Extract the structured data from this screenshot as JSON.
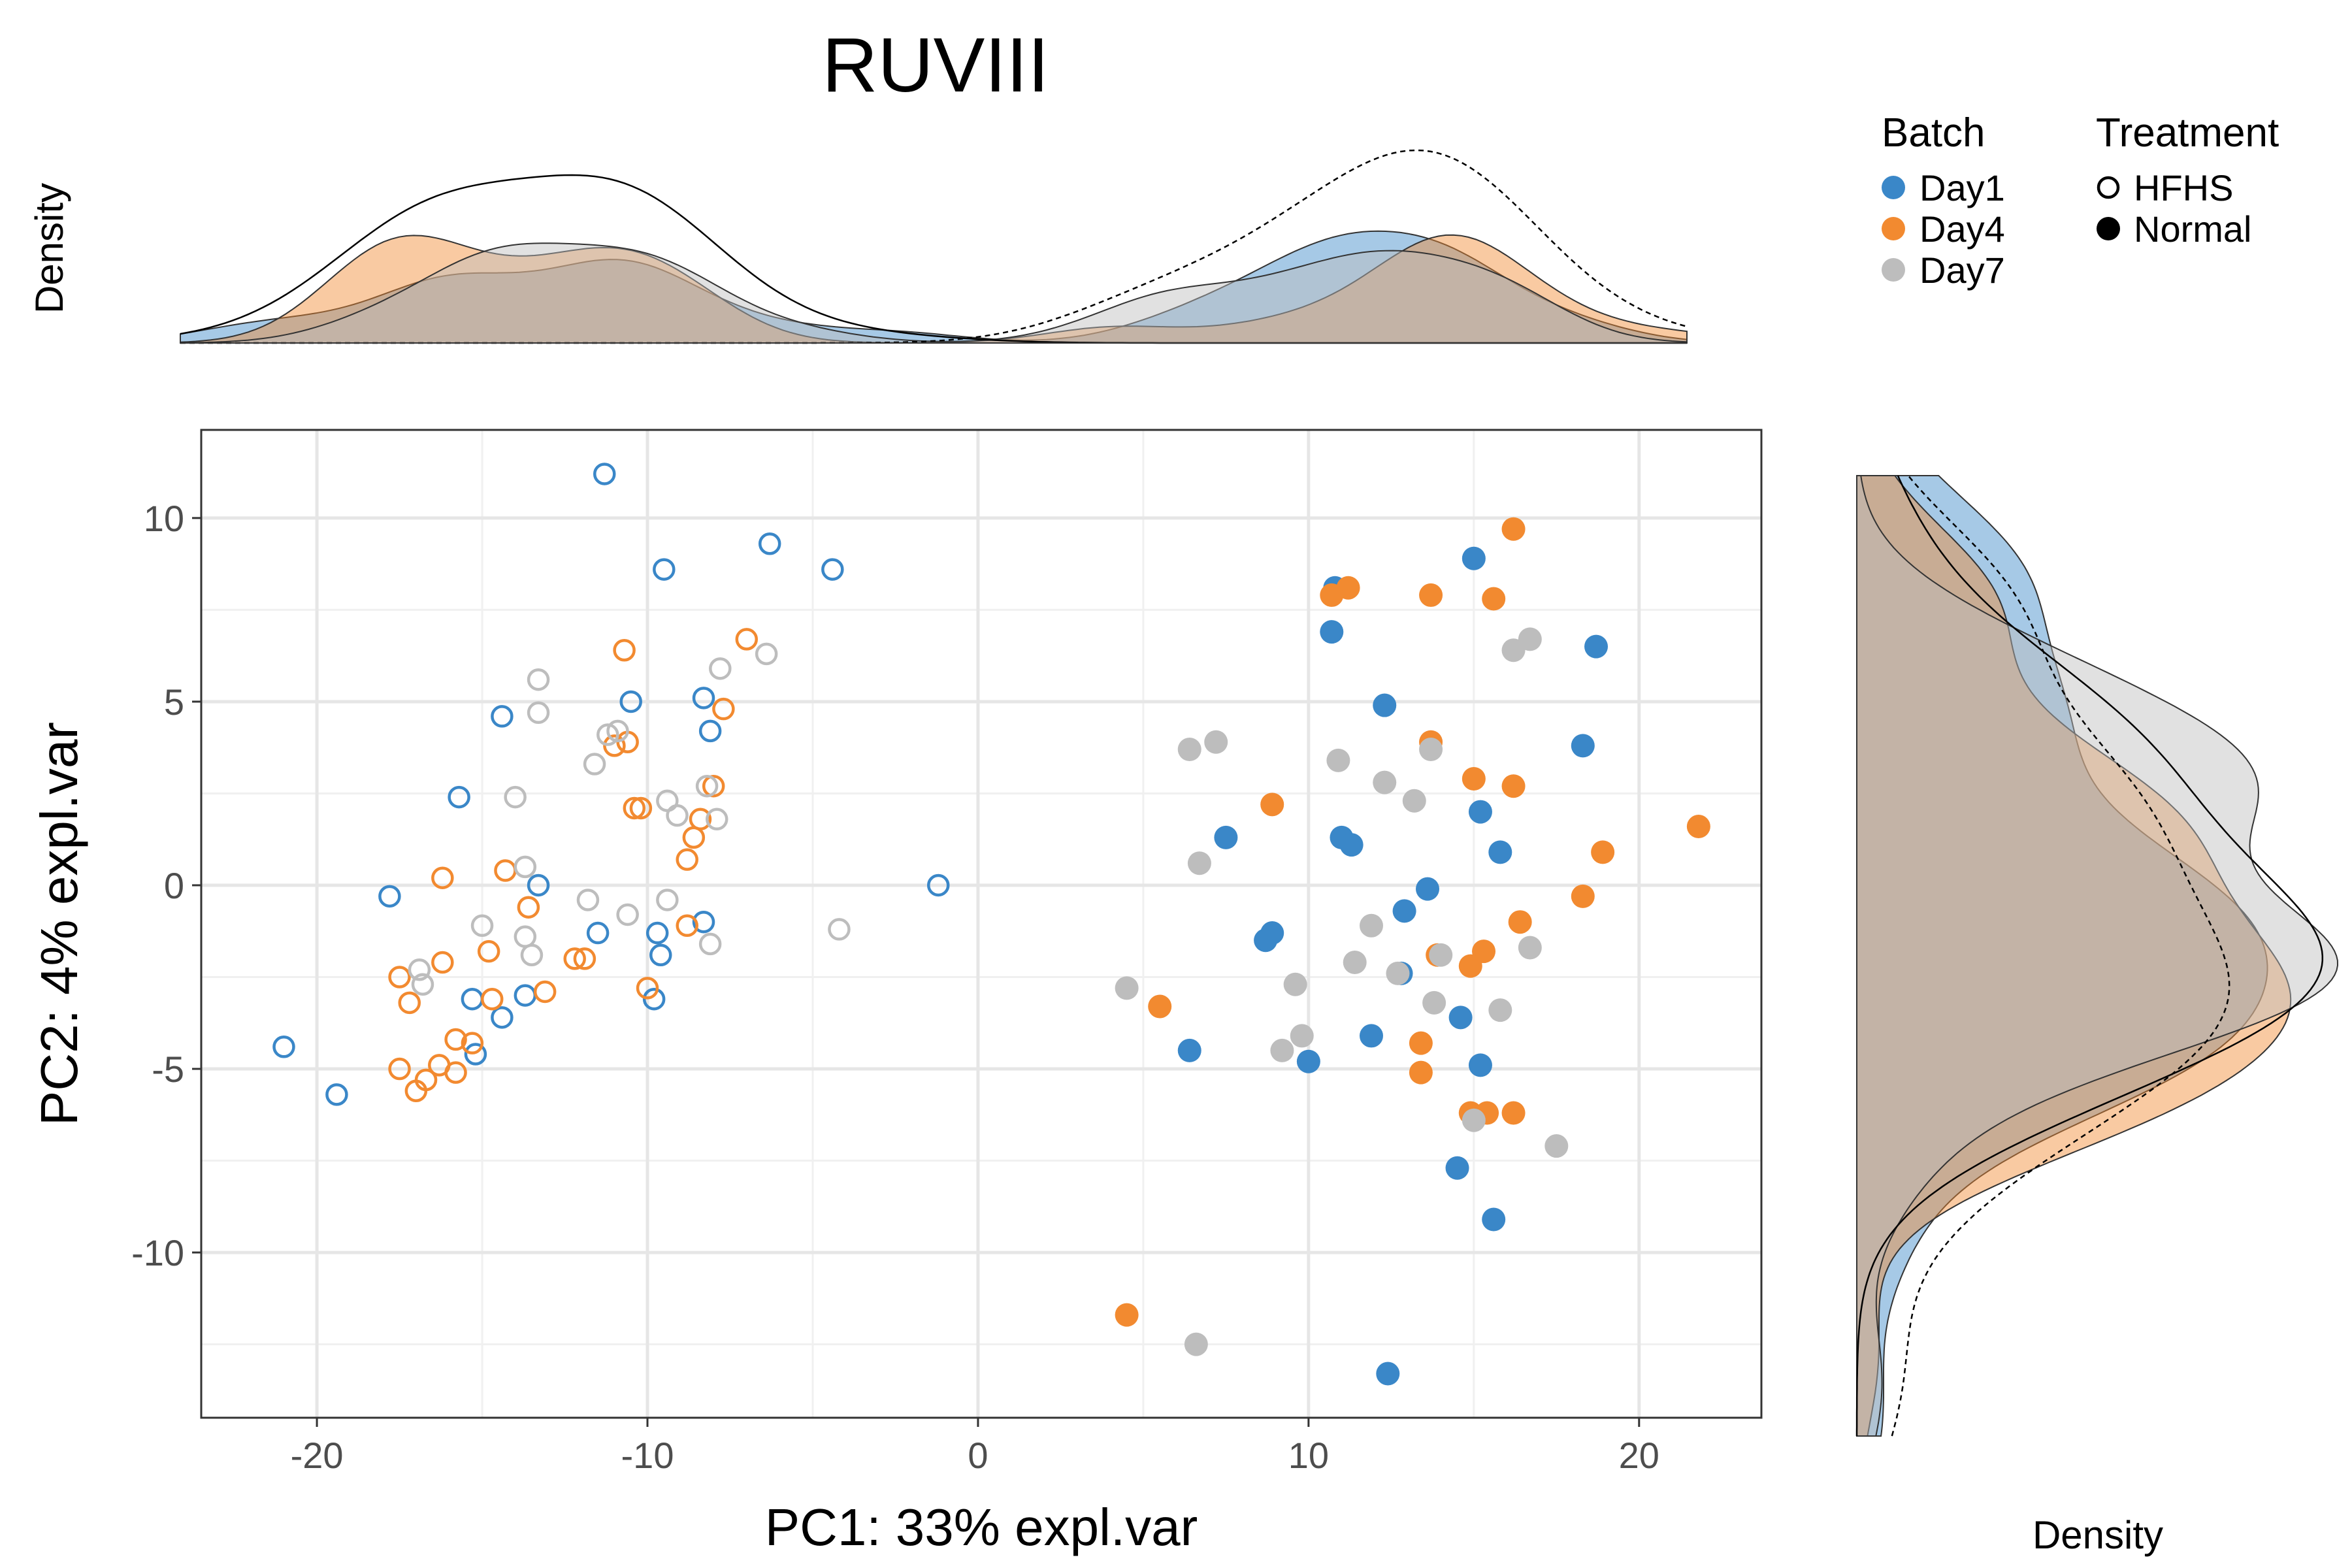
{
  "chart_data": {
    "type": "scatter",
    "title": "RUVIII",
    "xlabel": "PC1: 33% expl.var",
    "ylabel": "PC2: 4% expl.var",
    "top_density_label": "Density",
    "right_density_label": "Density",
    "xlim": [
      -23.5,
      23.7
    ],
    "ylim": [
      -14.5,
      12.4
    ],
    "x_ticks": [
      -20,
      -10,
      0,
      10,
      20
    ],
    "x_tick_labels": [
      "-20",
      "-10",
      "0",
      "10",
      "20"
    ],
    "y_ticks": [
      -10,
      -5,
      0,
      5,
      10
    ],
    "y_tick_labels": [
      "-10",
      "-5",
      "0",
      "5",
      "10"
    ],
    "grid": true,
    "legend": {
      "position": "top-right",
      "batch_title": "Batch",
      "batch_entries": [
        {
          "label": "Day1",
          "color": "#3a87c8"
        },
        {
          "label": "Day4",
          "color": "#f28a30"
        },
        {
          "label": "Day7",
          "color": "#bdbdbd"
        }
      ],
      "treatment_title": "Treatment",
      "treatment_entries": [
        {
          "label": "HFHS",
          "shape": "open-circle"
        },
        {
          "label": "Normal",
          "shape": "filled-circle"
        }
      ]
    },
    "colors": {
      "Day1": "#3a87c8",
      "Day4": "#f28a30",
      "Day7": "#bdbdbd"
    },
    "points": [
      {
        "batch": "Day1",
        "treatment": "HFHS",
        "x": -11.3,
        "y": 11.2
      },
      {
        "batch": "Day1",
        "treatment": "HFHS",
        "x": -9.5,
        "y": 8.6
      },
      {
        "batch": "Day1",
        "treatment": "HFHS",
        "x": -6.3,
        "y": 9.3
      },
      {
        "batch": "Day1",
        "treatment": "HFHS",
        "x": -4.4,
        "y": 8.6
      },
      {
        "batch": "Day1",
        "treatment": "HFHS",
        "x": -14.4,
        "y": 4.6
      },
      {
        "batch": "Day1",
        "treatment": "HFHS",
        "x": -10.5,
        "y": 5.0
      },
      {
        "batch": "Day1",
        "treatment": "HFHS",
        "x": -8.3,
        "y": 5.1
      },
      {
        "batch": "Day1",
        "treatment": "HFHS",
        "x": -8.1,
        "y": 4.2
      },
      {
        "batch": "Day1",
        "treatment": "HFHS",
        "x": -15.7,
        "y": 2.4
      },
      {
        "batch": "Day1",
        "treatment": "HFHS",
        "x": -17.8,
        "y": -0.3
      },
      {
        "batch": "Day1",
        "treatment": "HFHS",
        "x": -13.3,
        "y": 0.0
      },
      {
        "batch": "Day1",
        "treatment": "HFHS",
        "x": -1.2,
        "y": 0.0
      },
      {
        "batch": "Day1",
        "treatment": "HFHS",
        "x": -11.5,
        "y": -1.3
      },
      {
        "batch": "Day1",
        "treatment": "HFHS",
        "x": -9.7,
        "y": -1.3
      },
      {
        "batch": "Day1",
        "treatment": "HFHS",
        "x": -9.6,
        "y": -1.9
      },
      {
        "batch": "Day1",
        "treatment": "HFHS",
        "x": -8.3,
        "y": -1.0
      },
      {
        "batch": "Day1",
        "treatment": "HFHS",
        "x": -15.3,
        "y": -3.1
      },
      {
        "batch": "Day1",
        "treatment": "HFHS",
        "x": -13.7,
        "y": -3.0
      },
      {
        "batch": "Day1",
        "treatment": "HFHS",
        "x": -14.4,
        "y": -3.6
      },
      {
        "batch": "Day1",
        "treatment": "HFHS",
        "x": -15.2,
        "y": -4.6
      },
      {
        "batch": "Day1",
        "treatment": "HFHS",
        "x": -9.8,
        "y": -3.1
      },
      {
        "batch": "Day1",
        "treatment": "HFHS",
        "x": -21.0,
        "y": -4.4
      },
      {
        "batch": "Day1",
        "treatment": "HFHS",
        "x": -19.4,
        "y": -5.7
      },
      {
        "batch": "Day4",
        "treatment": "HFHS",
        "x": -10.7,
        "y": 6.4
      },
      {
        "batch": "Day4",
        "treatment": "HFHS",
        "x": -7.0,
        "y": 6.7
      },
      {
        "batch": "Day4",
        "treatment": "HFHS",
        "x": -7.7,
        "y": 4.8
      },
      {
        "batch": "Day4",
        "treatment": "HFHS",
        "x": -10.6,
        "y": 3.9
      },
      {
        "batch": "Day4",
        "treatment": "HFHS",
        "x": -11.0,
        "y": 3.8
      },
      {
        "batch": "Day4",
        "treatment": "HFHS",
        "x": -10.4,
        "y": 2.1
      },
      {
        "batch": "Day4",
        "treatment": "HFHS",
        "x": -10.2,
        "y": 2.1
      },
      {
        "batch": "Day4",
        "treatment": "HFHS",
        "x": -8.0,
        "y": 2.7
      },
      {
        "batch": "Day4",
        "treatment": "HFHS",
        "x": -8.4,
        "y": 1.8
      },
      {
        "batch": "Day4",
        "treatment": "HFHS",
        "x": -8.6,
        "y": 1.3
      },
      {
        "batch": "Day4",
        "treatment": "HFHS",
        "x": -8.8,
        "y": 0.7
      },
      {
        "batch": "Day4",
        "treatment": "HFHS",
        "x": -16.2,
        "y": 0.2
      },
      {
        "batch": "Day4",
        "treatment": "HFHS",
        "x": -14.3,
        "y": 0.4
      },
      {
        "batch": "Day4",
        "treatment": "HFHS",
        "x": -13.6,
        "y": -0.6
      },
      {
        "batch": "Day4",
        "treatment": "HFHS",
        "x": -14.8,
        "y": -1.8
      },
      {
        "batch": "Day4",
        "treatment": "HFHS",
        "x": -12.2,
        "y": -2.0
      },
      {
        "batch": "Day4",
        "treatment": "HFHS",
        "x": -11.9,
        "y": -2.0
      },
      {
        "batch": "Day4",
        "treatment": "HFHS",
        "x": -8.8,
        "y": -1.1
      },
      {
        "batch": "Day4",
        "treatment": "HFHS",
        "x": -16.2,
        "y": -2.1
      },
      {
        "batch": "Day4",
        "treatment": "HFHS",
        "x": -17.5,
        "y": -2.5
      },
      {
        "batch": "Day4",
        "treatment": "HFHS",
        "x": -17.2,
        "y": -3.2
      },
      {
        "batch": "Day4",
        "treatment": "HFHS",
        "x": -14.7,
        "y": -3.1
      },
      {
        "batch": "Day4",
        "treatment": "HFHS",
        "x": -13.1,
        "y": -2.9
      },
      {
        "batch": "Day4",
        "treatment": "HFHS",
        "x": -10.0,
        "y": -2.8
      },
      {
        "batch": "Day4",
        "treatment": "HFHS",
        "x": -15.8,
        "y": -4.2
      },
      {
        "batch": "Day4",
        "treatment": "HFHS",
        "x": -15.3,
        "y": -4.3
      },
      {
        "batch": "Day4",
        "treatment": "HFHS",
        "x": -16.3,
        "y": -4.9
      },
      {
        "batch": "Day4",
        "treatment": "HFHS",
        "x": -17.5,
        "y": -5.0
      },
      {
        "batch": "Day4",
        "treatment": "HFHS",
        "x": -15.8,
        "y": -5.1
      },
      {
        "batch": "Day4",
        "treatment": "HFHS",
        "x": -16.7,
        "y": -5.3
      },
      {
        "batch": "Day4",
        "treatment": "HFHS",
        "x": -17.0,
        "y": -5.6
      },
      {
        "batch": "Day7",
        "treatment": "HFHS",
        "x": -13.3,
        "y": 5.6
      },
      {
        "batch": "Day7",
        "treatment": "HFHS",
        "x": -13.3,
        "y": 4.7
      },
      {
        "batch": "Day7",
        "treatment": "HFHS",
        "x": -7.8,
        "y": 5.9
      },
      {
        "batch": "Day7",
        "treatment": "HFHS",
        "x": -6.4,
        "y": 6.3
      },
      {
        "batch": "Day7",
        "treatment": "HFHS",
        "x": -11.2,
        "y": 4.1
      },
      {
        "batch": "Day7",
        "treatment": "HFHS",
        "x": -10.9,
        "y": 4.2
      },
      {
        "batch": "Day7",
        "treatment": "HFHS",
        "x": -11.6,
        "y": 3.3
      },
      {
        "batch": "Day7",
        "treatment": "HFHS",
        "x": -14.0,
        "y": 2.4
      },
      {
        "batch": "Day7",
        "treatment": "HFHS",
        "x": -9.4,
        "y": 2.3
      },
      {
        "batch": "Day7",
        "treatment": "HFHS",
        "x": -9.1,
        "y": 1.9
      },
      {
        "batch": "Day7",
        "treatment": "HFHS",
        "x": -8.2,
        "y": 2.7
      },
      {
        "batch": "Day7",
        "treatment": "HFHS",
        "x": -7.9,
        "y": 1.8
      },
      {
        "batch": "Day7",
        "treatment": "HFHS",
        "x": -13.7,
        "y": 0.5
      },
      {
        "batch": "Day7",
        "treatment": "HFHS",
        "x": -11.8,
        "y": -0.4
      },
      {
        "batch": "Day7",
        "treatment": "HFHS",
        "x": -9.4,
        "y": -0.4
      },
      {
        "batch": "Day7",
        "treatment": "HFHS",
        "x": -10.6,
        "y": -0.8
      },
      {
        "batch": "Day7",
        "treatment": "HFHS",
        "x": -15.0,
        "y": -1.1
      },
      {
        "batch": "Day7",
        "treatment": "HFHS",
        "x": -13.7,
        "y": -1.4
      },
      {
        "batch": "Day7",
        "treatment": "HFHS",
        "x": -13.5,
        "y": -1.9
      },
      {
        "batch": "Day7",
        "treatment": "HFHS",
        "x": -8.1,
        "y": -1.6
      },
      {
        "batch": "Day7",
        "treatment": "HFHS",
        "x": -4.2,
        "y": -1.2
      },
      {
        "batch": "Day7",
        "treatment": "HFHS",
        "x": -16.9,
        "y": -2.3
      },
      {
        "batch": "Day7",
        "treatment": "HFHS",
        "x": -16.8,
        "y": -2.7
      },
      {
        "batch": "Day1",
        "treatment": "Normal",
        "x": 10.8,
        "y": 8.1
      },
      {
        "batch": "Day1",
        "treatment": "Normal",
        "x": 15.0,
        "y": 8.9
      },
      {
        "batch": "Day1",
        "treatment": "Normal",
        "x": 10.7,
        "y": 6.9
      },
      {
        "batch": "Day1",
        "treatment": "Normal",
        "x": 18.7,
        "y": 6.5
      },
      {
        "batch": "Day1",
        "treatment": "Normal",
        "x": 12.3,
        "y": 4.9
      },
      {
        "batch": "Day1",
        "treatment": "Normal",
        "x": 18.3,
        "y": 3.8
      },
      {
        "batch": "Day1",
        "treatment": "Normal",
        "x": 15.2,
        "y": 2.0
      },
      {
        "batch": "Day1",
        "treatment": "Normal",
        "x": 7.5,
        "y": 1.3
      },
      {
        "batch": "Day1",
        "treatment": "Normal",
        "x": 11.0,
        "y": 1.3
      },
      {
        "batch": "Day1",
        "treatment": "Normal",
        "x": 11.3,
        "y": 1.1
      },
      {
        "batch": "Day1",
        "treatment": "Normal",
        "x": 15.8,
        "y": 0.9
      },
      {
        "batch": "Day1",
        "treatment": "Normal",
        "x": 13.6,
        "y": -0.1
      },
      {
        "batch": "Day1",
        "treatment": "Normal",
        "x": 12.9,
        "y": -0.7
      },
      {
        "batch": "Day1",
        "treatment": "Normal",
        "x": 8.9,
        "y": -1.3
      },
      {
        "batch": "Day1",
        "treatment": "Normal",
        "x": 8.7,
        "y": -1.5
      },
      {
        "batch": "Day1",
        "treatment": "Normal",
        "x": 12.8,
        "y": -2.4
      },
      {
        "batch": "Day1",
        "treatment": "Normal",
        "x": 14.6,
        "y": -3.6
      },
      {
        "batch": "Day1",
        "treatment": "Normal",
        "x": 11.9,
        "y": -4.1
      },
      {
        "batch": "Day1",
        "treatment": "Normal",
        "x": 6.4,
        "y": -4.5
      },
      {
        "batch": "Day1",
        "treatment": "Normal",
        "x": 10.0,
        "y": -4.8
      },
      {
        "batch": "Day1",
        "treatment": "Normal",
        "x": 15.2,
        "y": -4.9
      },
      {
        "batch": "Day1",
        "treatment": "Normal",
        "x": 14.5,
        "y": -7.7
      },
      {
        "batch": "Day1",
        "treatment": "Normal",
        "x": 15.6,
        "y": -9.1
      },
      {
        "batch": "Day1",
        "treatment": "Normal",
        "x": 12.4,
        "y": -13.3
      },
      {
        "batch": "Day4",
        "treatment": "Normal",
        "x": 16.2,
        "y": 9.7
      },
      {
        "batch": "Day4",
        "treatment": "Normal",
        "x": 11.2,
        "y": 8.1
      },
      {
        "batch": "Day4",
        "treatment": "Normal",
        "x": 10.7,
        "y": 7.9
      },
      {
        "batch": "Day4",
        "treatment": "Normal",
        "x": 13.7,
        "y": 7.9
      },
      {
        "batch": "Day4",
        "treatment": "Normal",
        "x": 15.6,
        "y": 7.8
      },
      {
        "batch": "Day4",
        "treatment": "Normal",
        "x": 13.7,
        "y": 3.9
      },
      {
        "batch": "Day4",
        "treatment": "Normal",
        "x": 15.0,
        "y": 2.9
      },
      {
        "batch": "Day4",
        "treatment": "Normal",
        "x": 16.2,
        "y": 2.7
      },
      {
        "batch": "Day4",
        "treatment": "Normal",
        "x": 8.9,
        "y": 2.2
      },
      {
        "batch": "Day4",
        "treatment": "Normal",
        "x": 21.8,
        "y": 1.6
      },
      {
        "batch": "Day4",
        "treatment": "Normal",
        "x": 18.9,
        "y": 0.9
      },
      {
        "batch": "Day4",
        "treatment": "Normal",
        "x": 18.3,
        "y": -0.3
      },
      {
        "batch": "Day4",
        "treatment": "Normal",
        "x": 16.4,
        "y": -1.0
      },
      {
        "batch": "Day4",
        "treatment": "Normal",
        "x": 15.3,
        "y": -1.8
      },
      {
        "batch": "Day4",
        "treatment": "Normal",
        "x": 14.9,
        "y": -2.2
      },
      {
        "batch": "Day4",
        "treatment": "Normal",
        "x": 13.9,
        "y": -1.9
      },
      {
        "batch": "Day4",
        "treatment": "Normal",
        "x": 5.5,
        "y": -3.3
      },
      {
        "batch": "Day4",
        "treatment": "Normal",
        "x": 13.4,
        "y": -4.3
      },
      {
        "batch": "Day4",
        "treatment": "Normal",
        "x": 13.4,
        "y": -5.1
      },
      {
        "batch": "Day4",
        "treatment": "Normal",
        "x": 14.9,
        "y": -6.2
      },
      {
        "batch": "Day4",
        "treatment": "Normal",
        "x": 15.4,
        "y": -6.2
      },
      {
        "batch": "Day4",
        "treatment": "Normal",
        "x": 16.2,
        "y": -6.2
      },
      {
        "batch": "Day4",
        "treatment": "Normal",
        "x": 4.5,
        "y": -11.7
      },
      {
        "batch": "Day7",
        "treatment": "Normal",
        "x": 16.2,
        "y": 6.4
      },
      {
        "batch": "Day7",
        "treatment": "Normal",
        "x": 16.7,
        "y": 6.7
      },
      {
        "batch": "Day7",
        "treatment": "Normal",
        "x": 6.4,
        "y": 3.7
      },
      {
        "batch": "Day7",
        "treatment": "Normal",
        "x": 7.2,
        "y": 3.9
      },
      {
        "batch": "Day7",
        "treatment": "Normal",
        "x": 10.9,
        "y": 3.4
      },
      {
        "batch": "Day7",
        "treatment": "Normal",
        "x": 13.7,
        "y": 3.7
      },
      {
        "batch": "Day7",
        "treatment": "Normal",
        "x": 12.3,
        "y": 2.8
      },
      {
        "batch": "Day7",
        "treatment": "Normal",
        "x": 13.2,
        "y": 2.3
      },
      {
        "batch": "Day7",
        "treatment": "Normal",
        "x": 6.7,
        "y": 0.6
      },
      {
        "batch": "Day7",
        "treatment": "Normal",
        "x": 11.9,
        "y": -1.1
      },
      {
        "batch": "Day7",
        "treatment": "Normal",
        "x": 11.4,
        "y": -2.1
      },
      {
        "batch": "Day7",
        "treatment": "Normal",
        "x": 14.0,
        "y": -1.9
      },
      {
        "batch": "Day7",
        "treatment": "Normal",
        "x": 16.7,
        "y": -1.7
      },
      {
        "batch": "Day7",
        "treatment": "Normal",
        "x": 12.7,
        "y": -2.4
      },
      {
        "batch": "Day7",
        "treatment": "Normal",
        "x": 9.6,
        "y": -2.7
      },
      {
        "batch": "Day7",
        "treatment": "Normal",
        "x": 4.5,
        "y": -2.8
      },
      {
        "batch": "Day7",
        "treatment": "Normal",
        "x": 13.8,
        "y": -3.2
      },
      {
        "batch": "Day7",
        "treatment": "Normal",
        "x": 15.8,
        "y": -3.4
      },
      {
        "batch": "Day7",
        "treatment": "Normal",
        "x": 9.8,
        "y": -4.1
      },
      {
        "batch": "Day7",
        "treatment": "Normal",
        "x": 9.2,
        "y": -4.5
      },
      {
        "batch": "Day7",
        "treatment": "Normal",
        "x": 15.0,
        "y": -6.4
      },
      {
        "batch": "Day7",
        "treatment": "Normal",
        "x": 17.5,
        "y": -7.1
      },
      {
        "batch": "Day7",
        "treatment": "Normal",
        "x": 6.6,
        "y": -12.5
      }
    ]
  }
}
